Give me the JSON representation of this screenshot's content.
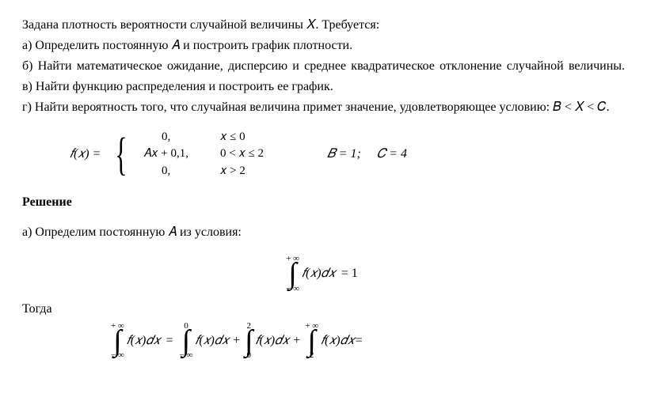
{
  "problem": {
    "intro": "Задана плотность вероятности случайной величины 𝑋. Требуется:",
    "item_a": "а) Определить постоянную 𝐴 и построить график плотности.",
    "item_b": "б) Найти математическое ожидание, дисперсию и среднее квадратическое отклонение случайной величины.",
    "item_v": "в) Найти функцию распределения и построить ее график.",
    "item_g": "г) Найти вероятность того, что случайная величина примет значение, удовлетворяющее условию: 𝐵 < 𝑋 < 𝐶."
  },
  "piecewise": {
    "fx": "𝑓(𝑥) =",
    "values": [
      "0,",
      "𝐴𝑥 + 0,1,",
      "0,"
    ],
    "conds": [
      "𝑥 ≤ 0",
      "0 < 𝑥 ≤ 2",
      "𝑥 > 2"
    ],
    "b_eq": "𝐵 = 1;",
    "c_eq": "𝐶 = 4"
  },
  "solution": {
    "heading": "Решение",
    "step_a": "а) Определим постоянную 𝐴 из условия:",
    "togda": "Тогда"
  },
  "integrals": {
    "fx_dx": "𝑓(𝑥)𝑑𝑥",
    "eq_one": "= 1",
    "neg_inf": "− ∞",
    "pos_inf": "+ ∞",
    "zero": "0",
    "two": "2",
    "eq": " = ",
    "plus": " + ",
    "tail_eq": " ="
  }
}
